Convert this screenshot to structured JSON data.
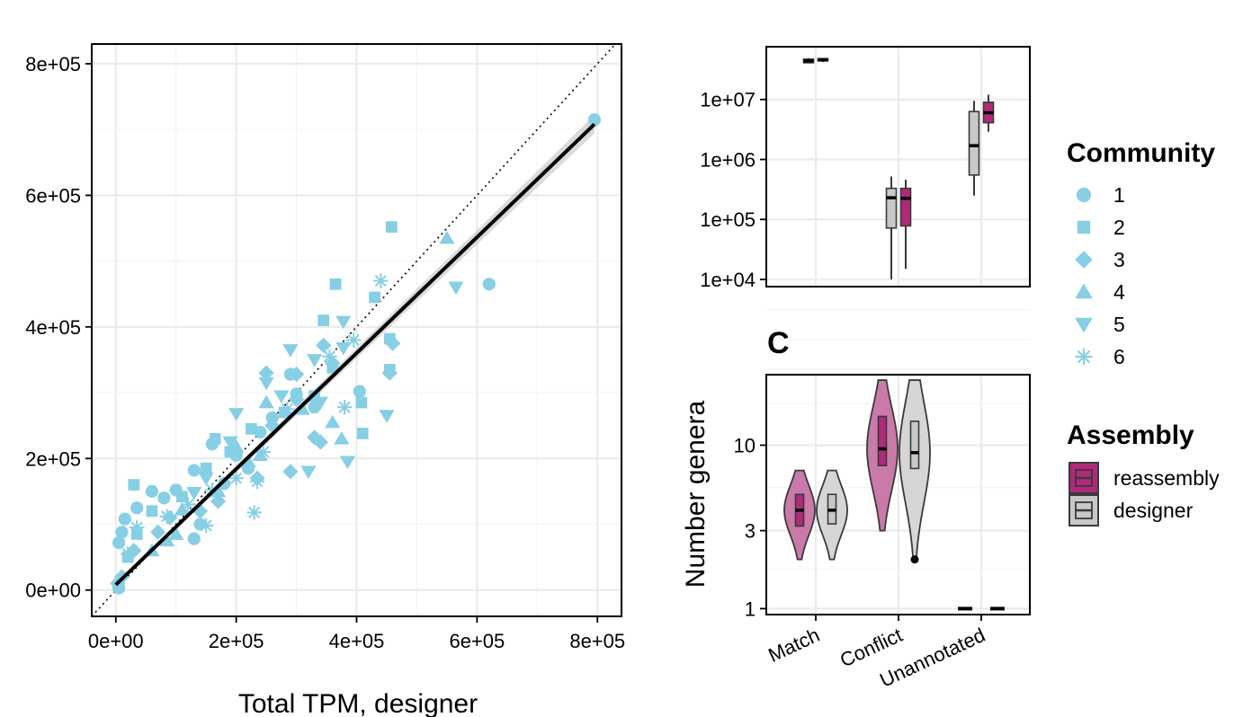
{
  "chart_data": [
    {
      "type": "scatter",
      "panel": "left",
      "xlabel": "Total TPM, designer",
      "ylabel": "",
      "xlim": [
        -40000,
        840000
      ],
      "ylim": [
        -40000,
        830000
      ],
      "x_ticks": [
        0,
        200000,
        400000,
        600000,
        800000
      ],
      "x_tick_labels": [
        "0e+00",
        "2e+05",
        "4e+05",
        "6e+05",
        "8e+05"
      ],
      "y_ticks": [
        0,
        200000,
        400000,
        600000,
        800000
      ],
      "y_tick_labels": [
        "0e+00",
        "2e+05",
        "4e+05",
        "6e+05",
        "8e+05"
      ],
      "point_color": "#86CFE5",
      "fit_line": {
        "x": [
          0,
          795000
        ],
        "y": [
          8000,
          708000
        ],
        "color": "#000000"
      },
      "identity_line": true,
      "series": [
        {
          "name": "1",
          "shape": "circle",
          "points": [
            [
              795000,
              715000
            ],
            [
              620000,
              465000
            ],
            [
              405000,
              302000
            ],
            [
              330000,
              278000
            ],
            [
              290000,
              328000
            ],
            [
              240000,
              240000
            ],
            [
              200000,
              205000
            ],
            [
              160000,
              222000
            ],
            [
              130000,
              182000
            ],
            [
              100000,
              152000
            ],
            [
              60000,
              150000
            ],
            [
              35000,
              125000
            ],
            [
              15000,
              108000
            ],
            [
              10000,
              88000
            ],
            [
              5000,
              72000
            ],
            [
              140000,
              100000
            ],
            [
              130000,
              78000
            ],
            [
              180000,
              162000
            ],
            [
              220000,
              185000
            ],
            [
              300000,
              298000
            ],
            [
              260000,
              262000
            ],
            [
              80000,
              140000
            ],
            [
              5000,
              3000
            ]
          ]
        },
        {
          "name": "2",
          "shape": "square",
          "points": [
            [
              458000,
              552000
            ],
            [
              365000,
              465000
            ],
            [
              345000,
              410000
            ],
            [
              430000,
              445000
            ],
            [
              455000,
              382000
            ],
            [
              455000,
              335000
            ],
            [
              408000,
              285000
            ],
            [
              410000,
              238000
            ],
            [
              360000,
              338000
            ],
            [
              330000,
              295000
            ],
            [
              225000,
              245000
            ],
            [
              190000,
              210000
            ],
            [
              150000,
              185000
            ],
            [
              110000,
              142000
            ],
            [
              60000,
              120000
            ],
            [
              35000,
              85000
            ],
            [
              20000,
              50000
            ],
            [
              5000,
              8000
            ],
            [
              30000,
              160000
            ],
            [
              280000,
              270000
            ],
            [
              165000,
              230000
            ]
          ]
        },
        {
          "name": "3",
          "shape": "diamond",
          "points": [
            [
              460000,
              375000
            ],
            [
              455000,
              330000
            ],
            [
              345000,
              372000
            ],
            [
              360000,
              345000
            ],
            [
              300000,
              290000
            ],
            [
              260000,
              250000
            ],
            [
              330000,
              232000
            ],
            [
              290000,
              180000
            ],
            [
              235000,
              170000
            ],
            [
              170000,
              135000
            ],
            [
              140000,
              120000
            ],
            [
              90000,
              110000
            ],
            [
              70000,
              88000
            ],
            [
              30000,
              60000
            ],
            [
              10000,
              20000
            ],
            [
              3000,
              10000
            ],
            [
              300000,
              328000
            ],
            [
              250000,
              330000
            ],
            [
              340000,
              225000
            ]
          ]
        },
        {
          "name": "4",
          "shape": "triangle-up",
          "points": [
            [
              550000,
              535000
            ],
            [
              375000,
              230000
            ],
            [
              360000,
              255000
            ],
            [
              310000,
              275000
            ],
            [
              240000,
              205000
            ],
            [
              220000,
              195000
            ],
            [
              170000,
              150000
            ],
            [
              110000,
              122000
            ],
            [
              100000,
              85000
            ],
            [
              85000,
              75000
            ],
            [
              60000,
              60000
            ],
            [
              250000,
              285000
            ],
            [
              200000,
              218000
            ]
          ]
        },
        {
          "name": "5",
          "shape": "triangle-down",
          "points": [
            [
              565000,
              460000
            ],
            [
              378000,
              408000
            ],
            [
              378000,
              368000
            ],
            [
              340000,
              285000
            ],
            [
              290000,
              365000
            ],
            [
              250000,
              315000
            ],
            [
              200000,
              268000
            ],
            [
              190000,
              225000
            ],
            [
              150000,
              170000
            ],
            [
              130000,
              148000
            ],
            [
              450000,
              265000
            ],
            [
              385000,
              195000
            ],
            [
              320000,
              180000
            ],
            [
              330000,
              350000
            ],
            [
              275000,
              295000
            ]
          ]
        },
        {
          "name": "6",
          "shape": "asterisk",
          "points": [
            [
              440000,
              470000
            ],
            [
              395000,
              380000
            ],
            [
              380000,
              278000
            ],
            [
              285000,
              275000
            ],
            [
              245000,
              210000
            ],
            [
              235000,
              165000
            ],
            [
              200000,
              170000
            ],
            [
              160000,
              152000
            ],
            [
              120000,
              130000
            ],
            [
              85000,
              112000
            ],
            [
              35000,
              95000
            ],
            [
              20000,
              55000
            ],
            [
              230000,
              118000
            ],
            [
              150000,
              98000
            ],
            [
              355000,
              355000
            ]
          ]
        }
      ]
    },
    {
      "type": "box",
      "panel": "top-right",
      "y_scale": "log",
      "ylim_log10": [
        3.88,
        7.88
      ],
      "y_tick_labels": [
        "1e+04",
        "1e+05",
        "1e+06",
        "1e+07"
      ],
      "y_tick_values": [
        10000,
        100000,
        1000000,
        10000000
      ],
      "groups": [
        {
          "name": "reassembly",
          "color": "#B0297A",
          "category": "Match",
          "whisker_low": 40000000,
          "q1": 41000000,
          "median": 44000000,
          "q3": 47000000,
          "whisker_high": 49000000
        },
        {
          "name": "designer",
          "color": "#C8C8C8",
          "category": "Match",
          "whisker_low": 42000000,
          "q1": 44000000,
          "median": 46000000,
          "q3": 48000000,
          "whisker_high": 49000000
        },
        {
          "name": "designer",
          "color": "#C8C8C8",
          "category": "Conflict",
          "whisker_low": 10000,
          "q1": 72000,
          "median": 230000,
          "q3": 330000,
          "whisker_high": 520000
        },
        {
          "name": "reassembly",
          "color": "#B0297A",
          "category": "Conflict",
          "whisker_low": 15000,
          "q1": 78000,
          "median": 225000,
          "q3": 330000,
          "whisker_high": 460000
        },
        {
          "name": "designer",
          "color": "#C8C8C8",
          "category": "Unannotated",
          "whisker_low": 250000,
          "q1": 550000,
          "median": 1700000,
          "q3": 6300000,
          "whisker_high": 9500000
        },
        {
          "name": "reassembly",
          "color": "#B0297A",
          "category": "Unannotated",
          "whisker_low": 2900000,
          "q1": 4100000,
          "median": 6000000,
          "q3": 9000000,
          "whisker_high": 12000000
        }
      ]
    },
    {
      "type": "violin",
      "panel": "C",
      "panel_label": "C",
      "ylabel": "Number genera",
      "y_scale": "log",
      "ylim": [
        0.92,
        27
      ],
      "y_tick_labels": [
        "1",
        "3",
        "10"
      ],
      "y_tick_values": [
        1,
        3,
        10
      ],
      "categories": [
        "Match",
        "Conflict",
        "Unannotated"
      ],
      "groups": [
        {
          "category": "Match",
          "assembly": "reassembly",
          "color": "#C97AA8",
          "box_color": "#B0297A",
          "min": 2,
          "q1": 3.2,
          "median": 4,
          "q3": 5,
          "max": 7
        },
        {
          "category": "Match",
          "assembly": "designer",
          "color": "#D6D6D6",
          "box_color": "#C8C8C8",
          "min": 2,
          "q1": 3.3,
          "median": 4,
          "q3": 5,
          "max": 7
        },
        {
          "category": "Conflict",
          "assembly": "reassembly",
          "color": "#C97AA8",
          "box_color": "#B0297A",
          "min": 3,
          "q1": 7.5,
          "median": 9.5,
          "q3": 15,
          "max": 25,
          "outliers": []
        },
        {
          "category": "Conflict",
          "assembly": "designer",
          "color": "#D6D6D6",
          "box_color": "#C8C8C8",
          "min": 2,
          "q1": 7.2,
          "median": 9,
          "q3": 14,
          "max": 25,
          "outliers": [
            2
          ]
        },
        {
          "category": "Unannotated",
          "assembly": "reassembly",
          "color": "#C97AA8",
          "box_color": "#B0297A",
          "min": 1,
          "q1": 1,
          "median": 1,
          "q3": 1,
          "max": 1
        },
        {
          "category": "Unannotated",
          "assembly": "designer",
          "color": "#D6D6D6",
          "box_color": "#C8C8C8",
          "min": 1,
          "q1": 1,
          "median": 1,
          "q3": 1,
          "max": 1
        }
      ]
    }
  ],
  "legend_community": {
    "title": "Community",
    "items": [
      {
        "label": "1",
        "shape": "circle"
      },
      {
        "label": "2",
        "shape": "square"
      },
      {
        "label": "3",
        "shape": "diamond"
      },
      {
        "label": "4",
        "shape": "triangle-up"
      },
      {
        "label": "5",
        "shape": "triangle-down"
      },
      {
        "label": "6",
        "shape": "asterisk"
      }
    ],
    "color": "#86CFE5"
  },
  "legend_assembly": {
    "title": "Assembly",
    "items": [
      {
        "label": "reassembly",
        "color": "#B0297A"
      },
      {
        "label": "designer",
        "color": "#C8C8C8"
      }
    ]
  }
}
